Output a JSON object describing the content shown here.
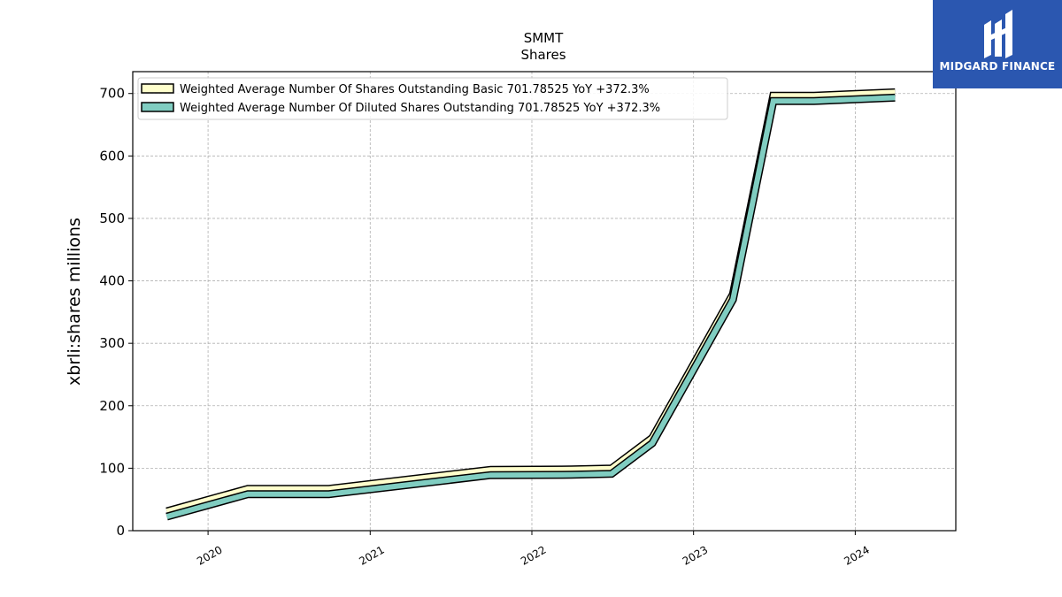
{
  "chart_data": {
    "type": "line",
    "title": "SMMT",
    "subtitle": "Shares",
    "xlabel": "",
    "ylabel": "xbrli:shares millions",
    "xlim": [
      "2019-07-15",
      "2024-08-15"
    ],
    "ylim": [
      0,
      735
    ],
    "x_ticks": [
      "2020",
      "2021",
      "2022",
      "2023",
      "2024"
    ],
    "y_ticks": [
      0,
      100,
      200,
      300,
      400,
      500,
      600,
      700
    ],
    "grid": true,
    "legend_position": "upper-left",
    "x": [
      "2019-09-30",
      "2020-03-31",
      "2020-09-30",
      "2021-09-30",
      "2022-03-31",
      "2022-06-30",
      "2022-09-30",
      "2023-03-31",
      "2023-06-30",
      "2023-09-30",
      "2024-03-31"
    ],
    "series": [
      {
        "name": "Weighted Average Number Of Shares Outstanding Basic  701.78525 YoY +372.3%",
        "values": [
          31,
          67,
          67,
          97.5,
          98,
          99.5,
          148.5,
          378.5,
          696.5,
          696.5,
          701.8
        ],
        "color": "#ffffcc"
      },
      {
        "name": "Weighted Average Number Of Diluted Shares Outstanding  701.78525 YoY +372.3%",
        "values": [
          31,
          67,
          67,
          97.5,
          98,
          99.5,
          148.5,
          378.5,
          696.5,
          696.5,
          701.8
        ],
        "color": "#80cdc1"
      }
    ]
  },
  "logo": {
    "text": "MIDGARD FINANCE",
    "background": "#2b57b0"
  }
}
